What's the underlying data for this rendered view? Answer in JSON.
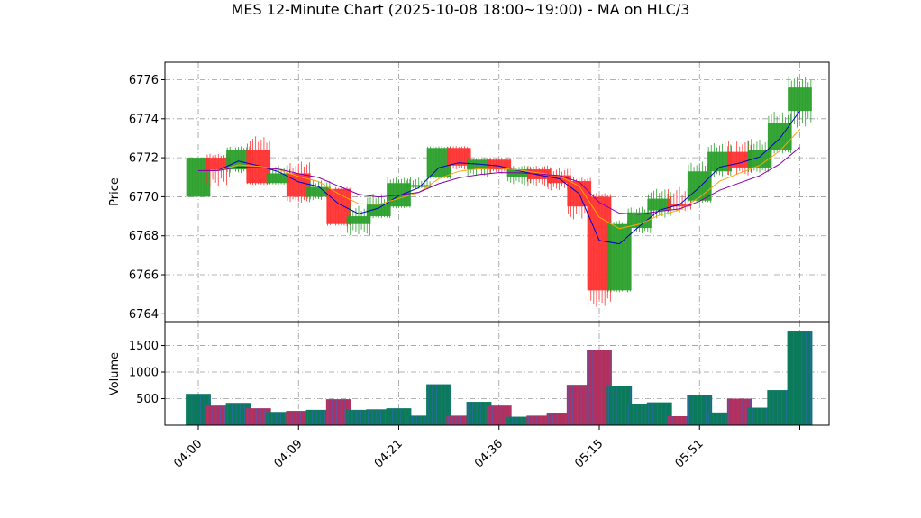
{
  "chart_data": {
    "type": "candlestick",
    "title": "MES 12-Minute Chart (2025-10-08 18:00~19:00) - MA on HLC/3",
    "price_panel": {
      "ylabel": "Price",
      "ylim": [
        6763.6,
        6776.9
      ],
      "yticks": [
        6764,
        6766,
        6768,
        6770,
        6772,
        6774,
        6776
      ],
      "grid": true
    },
    "volume_panel": {
      "ylabel": "Volume",
      "ylim": [
        0,
        1950
      ],
      "yticks": [
        500,
        1000,
        1500
      ],
      "grid": true
    },
    "xticks": [
      {
        "i": 0,
        "label": "04:00"
      },
      {
        "i": 5,
        "label": "04:09"
      },
      {
        "i": 10,
        "label": "04:21"
      },
      {
        "i": 15,
        "label": "04:36"
      },
      {
        "i": 20,
        "label": "05:15"
      },
      {
        "i": 25,
        "label": "05:51"
      },
      {
        "i": 30,
        "label": ""
      }
    ],
    "colors": {
      "up": "#2ca02c",
      "down": "#ff3333",
      "vol_up": "#0a7a5a",
      "vol_down": "#b03060",
      "vol_edge": "#3a66c4",
      "ma_fast": "#0000cc",
      "ma_mid": "#ffa500",
      "ma_slow": "#8800aa"
    },
    "candles": [
      {
        "o": 6770.0,
        "h": 6772.0,
        "l": 6770.0,
        "c": 6772.0,
        "v": 590
      },
      {
        "o": 6772.0,
        "h": 6772.2,
        "l": 6770.5,
        "c": 6771.4,
        "v": 370
      },
      {
        "o": 6771.4,
        "h": 6772.6,
        "l": 6771.2,
        "c": 6772.4,
        "v": 420
      },
      {
        "o": 6772.4,
        "h": 6773.1,
        "l": 6770.6,
        "c": 6770.7,
        "v": 320
      },
      {
        "o": 6770.7,
        "h": 6771.6,
        "l": 6770.6,
        "c": 6771.2,
        "v": 250
      },
      {
        "o": 6771.2,
        "h": 6771.8,
        "l": 6769.7,
        "c": 6770.0,
        "v": 270
      },
      {
        "o": 6770.0,
        "h": 6770.9,
        "l": 6769.8,
        "c": 6770.5,
        "v": 290
      },
      {
        "o": 6770.4,
        "h": 6770.5,
        "l": 6768.5,
        "c": 6768.6,
        "v": 490
      },
      {
        "o": 6768.6,
        "h": 6769.6,
        "l": 6768.0,
        "c": 6769.0,
        "v": 290
      },
      {
        "o": 6769.0,
        "h": 6770.2,
        "l": 6768.9,
        "c": 6769.6,
        "v": 300
      },
      {
        "o": 6769.5,
        "h": 6771.0,
        "l": 6769.4,
        "c": 6770.7,
        "v": 320
      },
      {
        "o": 6770.5,
        "h": 6771.0,
        "l": 6770.4,
        "c": 6770.6,
        "v": 180
      },
      {
        "o": 6771.0,
        "h": 6772.6,
        "l": 6770.9,
        "c": 6772.5,
        "v": 770
      },
      {
        "o": 6772.5,
        "h": 6772.6,
        "l": 6771.4,
        "c": 6771.6,
        "v": 180
      },
      {
        "o": 6771.4,
        "h": 6772.0,
        "l": 6771.0,
        "c": 6771.9,
        "v": 440
      },
      {
        "o": 6771.9,
        "h": 6772.0,
        "l": 6771.2,
        "c": 6771.4,
        "v": 370
      },
      {
        "o": 6771.0,
        "h": 6771.6,
        "l": 6770.6,
        "c": 6771.4,
        "v": 160
      },
      {
        "o": 6771.4,
        "h": 6771.6,
        "l": 6770.5,
        "c": 6770.9,
        "v": 180
      },
      {
        "o": 6771.1,
        "h": 6771.5,
        "l": 6770.3,
        "c": 6770.7,
        "v": 220
      },
      {
        "o": 6770.8,
        "h": 6771.0,
        "l": 6768.8,
        "c": 6769.5,
        "v": 760
      },
      {
        "o": 6770.0,
        "h": 6770.2,
        "l": 6764.3,
        "c": 6765.2,
        "v": 1420
      },
      {
        "o": 6765.2,
        "h": 6768.8,
        "l": 6765.1,
        "c": 6768.6,
        "v": 740
      },
      {
        "o": 6768.4,
        "h": 6769.5,
        "l": 6768.1,
        "c": 6769.2,
        "v": 390
      },
      {
        "o": 6769.3,
        "h": 6770.4,
        "l": 6768.9,
        "c": 6769.9,
        "v": 430
      },
      {
        "o": 6769.6,
        "h": 6770.5,
        "l": 6769.2,
        "c": 6769.5,
        "v": 170
      },
      {
        "o": 6769.8,
        "h": 6771.8,
        "l": 6769.7,
        "c": 6771.3,
        "v": 570
      },
      {
        "o": 6771.3,
        "h": 6772.8,
        "l": 6771.0,
        "c": 6772.3,
        "v": 240
      },
      {
        "o": 6772.3,
        "h": 6772.9,
        "l": 6771.1,
        "c": 6771.5,
        "v": 500
      },
      {
        "o": 6771.5,
        "h": 6773.0,
        "l": 6771.2,
        "c": 6772.4,
        "v": 330
      },
      {
        "o": 6772.4,
        "h": 6774.4,
        "l": 6772.2,
        "c": 6773.8,
        "v": 660
      },
      {
        "o": 6774.4,
        "h": 6776.2,
        "l": 6773.5,
        "c": 6775.6,
        "v": 1780
      }
    ]
  }
}
